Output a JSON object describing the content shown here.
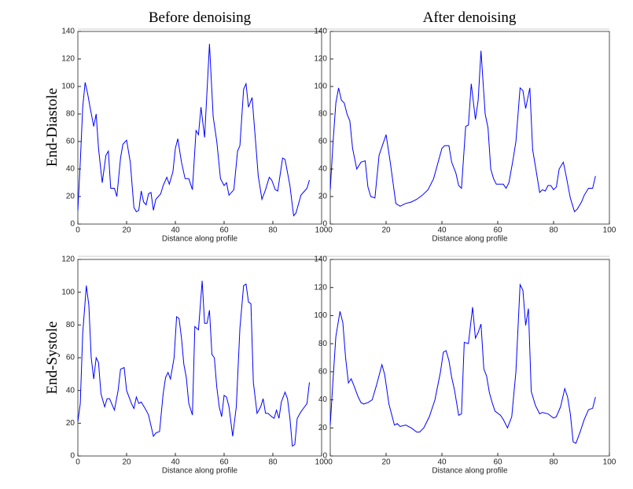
{
  "column_titles": [
    "Before denoising",
    "After denoising"
  ],
  "row_labels": [
    "End-Diastole",
    "End-Systole"
  ],
  "chart_data": [
    {
      "type": "line",
      "xlabel": "Distance along profile",
      "color": "#0000ff",
      "xlim": [
        0,
        100
      ],
      "xticks": [
        0,
        20,
        40,
        60,
        80,
        100
      ],
      "ylim": [
        0,
        140
      ],
      "yticks": [
        0,
        20,
        40,
        60,
        80,
        100,
        120,
        140
      ],
      "x": [
        0,
        1,
        2,
        3,
        4,
        5,
        6.5,
        7.5,
        8.5,
        10,
        11.5,
        12.5,
        13.5,
        15,
        16,
        17.5,
        18.5,
        20,
        21.5,
        23,
        24,
        25,
        26,
        27,
        28,
        29,
        30,
        31,
        32,
        34,
        35,
        36.5,
        37.5,
        39,
        40,
        41,
        42.5,
        44,
        45.5,
        47,
        48.5,
        49.5,
        50.5,
        52,
        54,
        55.5,
        57,
        58.5,
        60,
        61,
        62,
        64,
        65.5,
        66.5,
        68,
        69,
        70,
        71.5,
        73,
        74,
        75.5,
        77,
        78.5,
        79.5,
        81,
        82,
        84,
        85,
        87,
        88.5,
        89.5,
        91.5,
        93,
        94,
        95
      ],
      "values": [
        10,
        45,
        85,
        103,
        95,
        85,
        71,
        80,
        55,
        30,
        50,
        53,
        26,
        26,
        20,
        48,
        58,
        61,
        45,
        12,
        9,
        10,
        24,
        16,
        14,
        22,
        23,
        10,
        18,
        22,
        28,
        34,
        29,
        38,
        55,
        62,
        45,
        33,
        33,
        25,
        68,
        65,
        85,
        63,
        131,
        78,
        60,
        33,
        28,
        30,
        21,
        25,
        53,
        57,
        98,
        102,
        85,
        92,
        58,
        35,
        18,
        25,
        34,
        32,
        25,
        24,
        48,
        47,
        28,
        6,
        8,
        21,
        24,
        26,
        32
      ]
    },
    {
      "type": "line",
      "xlabel": "Distance along profile",
      "color": "#0000ff",
      "xlim": [
        0,
        100
      ],
      "xticks": [
        0,
        20,
        40,
        60,
        80,
        100
      ],
      "ylim": [
        0,
        140
      ],
      "yticks": [
        0,
        20,
        40,
        60,
        80,
        100,
        120,
        140
      ],
      "x": [
        0,
        1,
        2,
        3,
        4,
        5,
        6,
        7,
        8,
        9.5,
        11,
        12.5,
        13.5,
        14.5,
        16,
        17.5,
        20,
        21.5,
        23.5,
        25,
        27,
        29,
        31,
        33,
        35,
        37,
        38.5,
        40,
        41,
        42.5,
        43.5,
        45,
        46,
        47,
        48.5,
        49.5,
        50.5,
        52,
        53,
        54,
        55.5,
        56.5,
        57.5,
        58.5,
        59.5,
        61,
        62,
        63,
        64,
        65.5,
        66.5,
        68,
        69,
        70,
        71.5,
        72.5,
        73.5,
        75,
        76,
        77,
        78,
        79,
        80,
        81,
        82,
        83.5,
        84.5,
        86,
        87.5,
        88.5,
        90,
        91,
        92.5,
        94,
        95
      ],
      "values": [
        25,
        60,
        88,
        99,
        90,
        88,
        80,
        75,
        55,
        40,
        45,
        46,
        27,
        20,
        19,
        50,
        65,
        45,
        15,
        13,
        15,
        16,
        18,
        21,
        25,
        33,
        44,
        55,
        57,
        57,
        45,
        37,
        28,
        26,
        71,
        72,
        102,
        76,
        90,
        126,
        80,
        70,
        40,
        33,
        29,
        29,
        29,
        26,
        30,
        47,
        60,
        99,
        97,
        84,
        99,
        54,
        42,
        23,
        25,
        24,
        28,
        28,
        25,
        27,
        40,
        45,
        35,
        19,
        9,
        11,
        16,
        21,
        26,
        26,
        35
      ]
    },
    {
      "type": "line",
      "xlabel": "Distance along profile",
      "color": "#0000ff",
      "xlim": [
        0,
        100
      ],
      "xticks": [
        0,
        20,
        40,
        60,
        80,
        100
      ],
      "ylim": [
        0,
        120
      ],
      "yticks": [
        0,
        20,
        40,
        60,
        80,
        100,
        120
      ],
      "x": [
        0,
        1,
        2,
        3.5,
        4.5,
        5.5,
        6.5,
        7.5,
        8.5,
        9.5,
        11,
        12,
        13,
        15,
        16.5,
        17.5,
        19,
        20,
        22,
        23,
        24,
        25,
        26,
        28,
        29,
        31,
        32,
        33.5,
        35,
        36,
        37,
        38,
        39.5,
        40.5,
        41.5,
        42.5,
        43.5,
        44.5,
        45.5,
        47,
        48,
        49.5,
        51,
        52,
        53,
        54,
        55,
        56,
        57,
        58,
        59,
        60,
        61,
        62,
        63.5,
        65,
        66.5,
        68,
        69,
        70,
        71,
        72,
        73.5,
        75,
        76,
        77,
        78,
        79.5,
        80.5,
        81.5,
        82.5,
        83.5,
        85,
        86,
        87,
        88,
        89,
        90,
        91.5,
        93,
        94,
        95
      ],
      "values": [
        21,
        32,
        75,
        104,
        92,
        60,
        47,
        60,
        57,
        38,
        30,
        35,
        35,
        28,
        40,
        53,
        54,
        40,
        32,
        29,
        36,
        32,
        33,
        28,
        25,
        12,
        14,
        15,
        38,
        48,
        51,
        47,
        60,
        85,
        84,
        72,
        56,
        48,
        32,
        25,
        79,
        77,
        107,
        81,
        81,
        89,
        62,
        60,
        42,
        30,
        24,
        37,
        36,
        30,
        12,
        30,
        78,
        104,
        105,
        94,
        93,
        45,
        26,
        30,
        35,
        26,
        26,
        24,
        23,
        28,
        23,
        33,
        39,
        35,
        23,
        6,
        7,
        23,
        27,
        30,
        32,
        45
      ]
    },
    {
      "type": "line",
      "xlabel": "Distance along profile",
      "color": "#0000ff",
      "xlim": [
        0,
        100
      ],
      "xticks": [
        0,
        20,
        40,
        60,
        80,
        100
      ],
      "ylim": [
        0,
        140
      ],
      "yticks": [
        0,
        20,
        40,
        60,
        80,
        100,
        120,
        140
      ],
      "x": [
        0,
        1,
        2,
        3.5,
        4.5,
        5.5,
        6.5,
        7.5,
        8.5,
        10,
        11,
        12,
        13.5,
        15,
        16.5,
        18.5,
        19.5,
        21,
        23,
        24,
        25,
        27,
        29,
        31,
        32,
        33.5,
        35.5,
        37.5,
        39.5,
        40.5,
        41.5,
        42.5,
        43.5,
        44.5,
        46,
        47,
        48,
        49.5,
        51,
        52,
        53,
        54,
        55,
        56,
        57,
        58,
        59,
        61,
        62,
        63.5,
        65,
        66.5,
        68,
        69,
        70,
        71,
        72,
        73.5,
        75,
        76,
        78,
        80,
        81,
        82.5,
        84,
        85,
        86,
        87,
        88,
        89.5,
        91,
        92.5,
        94,
        95
      ],
      "values": [
        22,
        55,
        85,
        103,
        95,
        70,
        52,
        55,
        50,
        42,
        38,
        37,
        38,
        40,
        50,
        65,
        58,
        37,
        22,
        23,
        21,
        22,
        20,
        17,
        17,
        20,
        28,
        40,
        60,
        74,
        75,
        68,
        56,
        47,
        29,
        30,
        81,
        80,
        106,
        84,
        88,
        94,
        62,
        57,
        45,
        38,
        32,
        29,
        26,
        20,
        28,
        60,
        122,
        118,
        93,
        105,
        46,
        36,
        30,
        31,
        30,
        27,
        28,
        35,
        48,
        42,
        30,
        10,
        9,
        17,
        26,
        33,
        34,
        42
      ]
    }
  ]
}
